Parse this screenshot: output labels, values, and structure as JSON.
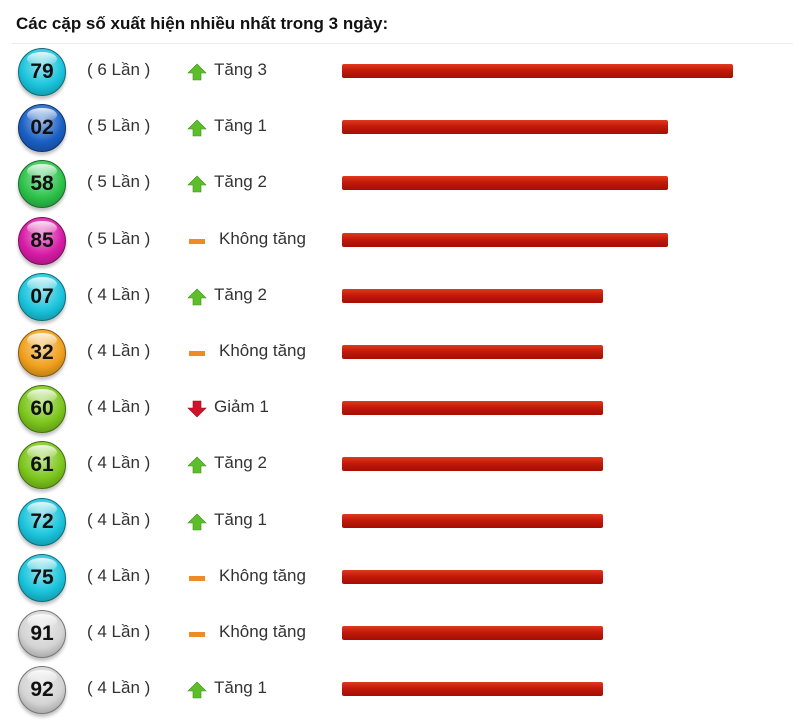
{
  "title": "Các cặp số xuất hiện nhiều nhất trong 3 ngày:",
  "chart_data": {
    "type": "bar",
    "orientation": "horizontal",
    "title": "Các cặp số xuất hiện nhiều nhất trong 3 ngày:",
    "categories": [
      "79",
      "02",
      "58",
      "85",
      "07",
      "32",
      "60",
      "61",
      "72",
      "75",
      "91",
      "92"
    ],
    "values": [
      6,
      5,
      5,
      5,
      4,
      4,
      4,
      4,
      4,
      4,
      4,
      4
    ],
    "xlim": [
      0,
      6
    ],
    "bar_color": "#c21a0a"
  },
  "rows": [
    {
      "number": "79",
      "count_label": "( 6 Lần )",
      "trend": "up",
      "trend_label": "Tăng 3",
      "ball_color": "#19c4dc"
    },
    {
      "number": "02",
      "count_label": "( 5 Lần )",
      "trend": "up",
      "trend_label": "Tăng 1",
      "ball_color": "#1a5fc4"
    },
    {
      "number": "58",
      "count_label": "( 5 Lần )",
      "trend": "up",
      "trend_label": "Tăng 2",
      "ball_color": "#2cc24a"
    },
    {
      "number": "85",
      "count_label": "( 5 Lần )",
      "trend": "flat",
      "trend_label": "Không tăng",
      "ball_color": "#d81ba6"
    },
    {
      "number": "07",
      "count_label": "( 4 Lần )",
      "trend": "up",
      "trend_label": "Tăng 2",
      "ball_color": "#19c4dc"
    },
    {
      "number": "32",
      "count_label": "( 4 Lần )",
      "trend": "flat",
      "trend_label": "Không tăng",
      "ball_color": "#f0a01c"
    },
    {
      "number": "60",
      "count_label": "( 4 Lần )",
      "trend": "down",
      "trend_label": "Giảm 1",
      "ball_color": "#7cc61c"
    },
    {
      "number": "61",
      "count_label": "( 4 Lần )",
      "trend": "up",
      "trend_label": "Tăng 2",
      "ball_color": "#7cc61c"
    },
    {
      "number": "72",
      "count_label": "( 4 Lần )",
      "trend": "up",
      "trend_label": "Tăng 1",
      "ball_color": "#19c4dc"
    },
    {
      "number": "75",
      "count_label": "( 4 Lần )",
      "trend": "flat",
      "trend_label": "Không tăng",
      "ball_color": "#19c4dc"
    },
    {
      "number": "91",
      "count_label": "( 4 Lần )",
      "trend": "flat",
      "trend_label": "Không tăng",
      "ball_color": "#d4d4d4"
    },
    {
      "number": "92",
      "count_label": "( 4 Lần )",
      "trend": "up",
      "trend_label": "Tăng 1",
      "ball_color": "#d4d4d4"
    }
  ],
  "icons": {
    "up": "up-arrow-icon",
    "flat": "dash-icon",
    "down": "down-arrow-icon"
  },
  "colors": {
    "up": "#5cbf2a",
    "flat": "#f08a24",
    "down": "#d0132a",
    "bar": "#c21a0a"
  }
}
